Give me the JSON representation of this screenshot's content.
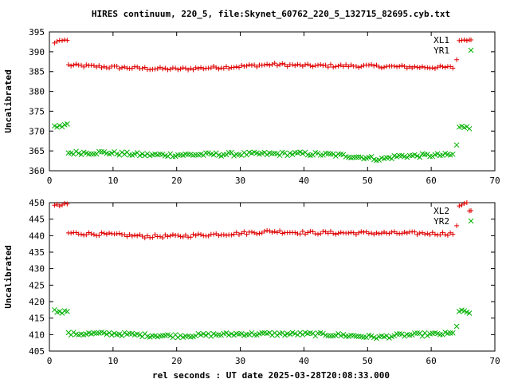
{
  "title": "HIRES continuum, 220_5, file:Skynet_60762_220_5_132715_82695.cyb.txt",
  "xlabel": "rel seconds : UT date 2025-03-28T20:08:33.000",
  "colors": {
    "red": "#e00000",
    "green": "#00b000",
    "axis": "#000000"
  },
  "chart_data": [
    {
      "type": "scatter",
      "ylabel": "Uncalibrated",
      "xlim": [
        0,
        70
      ],
      "ylim": [
        360,
        395
      ],
      "xticks": [
        0,
        10,
        20,
        30,
        40,
        50,
        60,
        70
      ],
      "yticks": [
        360,
        365,
        370,
        375,
        380,
        385,
        390,
        395
      ],
      "legend_position": "top-right",
      "series": [
        {
          "name": "XL1",
          "marker": "plus",
          "color": "#e00000",
          "points": [
            [
              0.8,
              392.2
            ],
            [
              1.2,
              392.6
            ],
            [
              1.6,
              392.9
            ],
            [
              2.0,
              392.8
            ],
            [
              2.4,
              393.0
            ],
            [
              2.8,
              392.9
            ],
            [
              64.0,
              388.0
            ],
            [
              64.4,
              392.8
            ],
            [
              64.8,
              392.9
            ],
            [
              65.2,
              393.0
            ],
            [
              65.6,
              392.8
            ],
            [
              66.0,
              393.0
            ]
          ],
          "band": {
            "x_from": 3.0,
            "x_to": 63.6,
            "step": 0.4,
            "y": [
              [
                3,
                386.6
              ],
              [
                10,
                386.1
              ],
              [
                15,
                385.8
              ],
              [
                20,
                385.6
              ],
              [
                30,
                386.3
              ],
              [
                35,
                386.8
              ],
              [
                40,
                386.5
              ],
              [
                50,
                386.4
              ],
              [
                55,
                386.2
              ],
              [
                63.6,
                386.0
              ]
            ],
            "spread": 0.8
          }
        },
        {
          "name": "YR1",
          "marker": "cross",
          "color": "#00b000",
          "points": [
            [
              0.8,
              371.3
            ],
            [
              1.2,
              371.0
            ],
            [
              1.6,
              371.4
            ],
            [
              2.0,
              371.1
            ],
            [
              2.4,
              371.6
            ],
            [
              2.8,
              371.8
            ],
            [
              64.0,
              366.5
            ],
            [
              64.4,
              371.0
            ],
            [
              64.8,
              371.2
            ],
            [
              65.2,
              370.9
            ],
            [
              65.6,
              371.1
            ],
            [
              66.0,
              370.6
            ]
          ],
          "band": {
            "x_from": 3.0,
            "x_to": 63.6,
            "step": 0.4,
            "y": [
              [
                3,
                364.5
              ],
              [
                8,
                364.6
              ],
              [
                15,
                364.0
              ],
              [
                20,
                364.0
              ],
              [
                30,
                364.2
              ],
              [
                40,
                364.3
              ],
              [
                45,
                364.0
              ],
              [
                50,
                363.3
              ],
              [
                52,
                362.9
              ],
              [
                55,
                363.7
              ],
              [
                63.6,
                364.0
              ]
            ],
            "spread": 0.9
          }
        }
      ]
    },
    {
      "type": "scatter",
      "ylabel": "Uncalibrated",
      "xlim": [
        0,
        70
      ],
      "ylim": [
        405,
        450
      ],
      "xticks": [
        0,
        10,
        20,
        30,
        40,
        50,
        60,
        70
      ],
      "yticks": [
        405,
        410,
        415,
        420,
        425,
        430,
        435,
        440,
        445,
        450
      ],
      "legend_position": "top-right",
      "series": [
        {
          "name": "XL2",
          "marker": "plus",
          "color": "#e00000",
          "points": [
            [
              0.8,
              449.2
            ],
            [
              1.2,
              449.5
            ],
            [
              1.6,
              449.0
            ],
            [
              2.0,
              449.3
            ],
            [
              2.4,
              449.8
            ],
            [
              2.8,
              449.6
            ],
            [
              64.0,
              443.0
            ],
            [
              64.4,
              449.0
            ],
            [
              64.8,
              449.3
            ],
            [
              65.2,
              449.8
            ],
            [
              65.6,
              450.0
            ],
            [
              66.0,
              447.5
            ]
          ],
          "band": {
            "x_from": 3.0,
            "x_to": 63.6,
            "step": 0.4,
            "y": [
              [
                3,
                440.8
              ],
              [
                10,
                440.3
              ],
              [
                15,
                439.8
              ],
              [
                20,
                439.8
              ],
              [
                25,
                440.3
              ],
              [
                30,
                440.7
              ],
              [
                35,
                441.3
              ],
              [
                40,
                440.9
              ],
              [
                50,
                440.8
              ],
              [
                63.6,
                440.6
              ]
            ],
            "spread": 1.0
          }
        },
        {
          "name": "YR2",
          "marker": "cross",
          "color": "#00b000",
          "points": [
            [
              0.8,
              417.5
            ],
            [
              1.2,
              416.8
            ],
            [
              1.6,
              417.0
            ],
            [
              2.0,
              416.5
            ],
            [
              2.4,
              417.2
            ],
            [
              2.8,
              417.0
            ],
            [
              64.0,
              412.5
            ],
            [
              64.4,
              417.0
            ],
            [
              64.8,
              417.4
            ],
            [
              65.2,
              417.2
            ],
            [
              65.6,
              416.8
            ],
            [
              66.0,
              416.5
            ]
          ],
          "band": {
            "x_from": 3.0,
            "x_to": 63.6,
            "step": 0.4,
            "y": [
              [
                3,
                410.2
              ],
              [
                10,
                410.3
              ],
              [
                15,
                409.8
              ],
              [
                20,
                409.6
              ],
              [
                30,
                410.2
              ],
              [
                40,
                410.2
              ],
              [
                45,
                409.9
              ],
              [
                50,
                409.4
              ],
              [
                52,
                409.2
              ],
              [
                55,
                409.8
              ],
              [
                63.6,
                410.3
              ]
            ],
            "spread": 1.0
          }
        }
      ]
    }
  ]
}
